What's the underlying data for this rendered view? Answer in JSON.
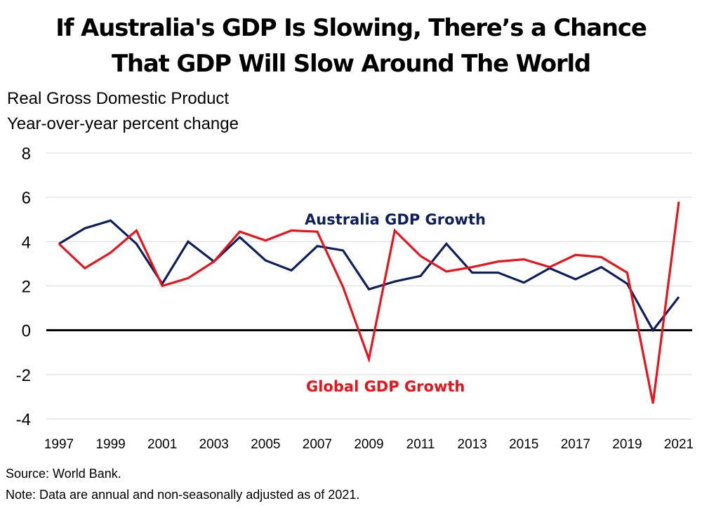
{
  "chart_data": {
    "type": "line",
    "title": "If Australia's GDP Is Slowing, There’s a Chance That GDP Will Slow Around The World",
    "title_lines": [
      "If Australia's GDP Is Slowing, There’s a Chance",
      "That GDP Will Slow Around The World"
    ],
    "subtitle_lines": [
      "Real Gross Domestic Product",
      "Year-over-year percent change"
    ],
    "xlabel": "",
    "ylabel": "Year-over-year percent change",
    "x": [
      1997,
      1998,
      1999,
      2000,
      2001,
      2002,
      2003,
      2004,
      2005,
      2006,
      2007,
      2008,
      2009,
      2010,
      2011,
      2012,
      2013,
      2014,
      2015,
      2016,
      2017,
      2018,
      2019,
      2020,
      2021
    ],
    "x_tick_labels": [
      "1997",
      "1999",
      "2001",
      "2003",
      "2005",
      "2007",
      "2009",
      "2011",
      "2013",
      "2015",
      "2017",
      "2019",
      "2021"
    ],
    "y_tick_labels": [
      "8",
      "6",
      "4",
      "2",
      "0",
      "-2",
      "-4"
    ],
    "y_ticks": [
      8,
      6,
      4,
      2,
      0,
      -2,
      -4
    ],
    "ylim": [
      -4,
      8
    ],
    "grid": true,
    "series": [
      {
        "name": "Australia GDP Growth",
        "color": "#0d1f5c",
        "values": [
          3.9,
          4.6,
          4.95,
          3.9,
          2.1,
          4.0,
          3.1,
          4.2,
          3.15,
          2.7,
          3.8,
          3.6,
          1.85,
          2.2,
          2.45,
          3.9,
          2.6,
          2.6,
          2.15,
          2.8,
          2.3,
          2.85,
          2.1,
          0.0,
          1.5
        ]
      },
      {
        "name": "Global GDP Growth",
        "color": "#e8141b",
        "values": [
          3.9,
          2.8,
          3.5,
          4.5,
          2.0,
          2.35,
          3.1,
          4.45,
          4.05,
          4.5,
          4.45,
          1.95,
          -1.3,
          4.5,
          3.35,
          2.65,
          2.85,
          3.1,
          3.2,
          2.85,
          3.4,
          3.3,
          2.6,
          -3.3,
          5.8
        ]
      }
    ],
    "annotations": [
      "Australia GDP Growth",
      "Global GDP Growth"
    ],
    "zero_line_color": "#000000",
    "grid_color": "#d9d9d9"
  },
  "footer": {
    "source": "Source: World Bank.",
    "note": "Note: Data are annual and non-seasonally adjusted as of 2021."
  }
}
